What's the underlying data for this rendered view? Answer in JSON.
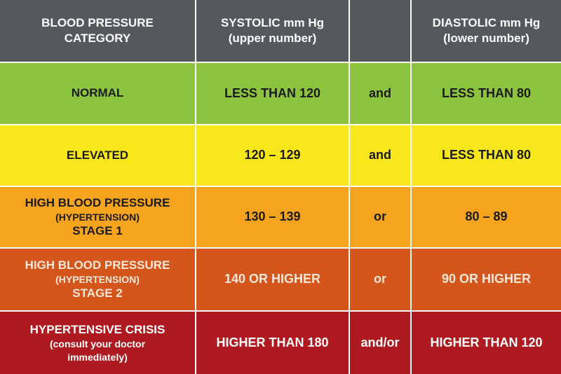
{
  "header": {
    "category": [
      "BLOOD PRESSURE",
      "CATEGORY"
    ],
    "systolic": [
      "SYSTOLIC mm Hg",
      "(upper number)"
    ],
    "diastolic": [
      "DIASTOLIC mm Hg",
      "(lower number)"
    ]
  },
  "rows": [
    {
      "category": [
        "NORMAL"
      ],
      "systolic": "LESS THAN 120",
      "conjunction": "and",
      "diastolic": "LESS THAN 80"
    },
    {
      "category": [
        "ELEVATED"
      ],
      "systolic": "120 – 129",
      "conjunction": "and",
      "diastolic": "LESS THAN 80"
    },
    {
      "category": [
        "HIGH BLOOD PRESSURE",
        "(HYPERTENSION)",
        "STAGE 1"
      ],
      "systolic": "130 – 139",
      "conjunction": "or",
      "diastolic": "80 – 89"
    },
    {
      "category": [
        "HIGH BLOOD PRESSURE",
        "(HYPERTENSION)",
        "STAGE 2"
      ],
      "systolic": "140 OR HIGHER",
      "conjunction": "or",
      "diastolic": "90 OR HIGHER"
    },
    {
      "category": [
        "HYPERTENSIVE CRISIS",
        "(consult your doctor",
        "immediately)"
      ],
      "systolic": "HIGHER THAN 180",
      "conjunction": "and/or",
      "diastolic": "HIGHER THAN 120"
    }
  ]
}
